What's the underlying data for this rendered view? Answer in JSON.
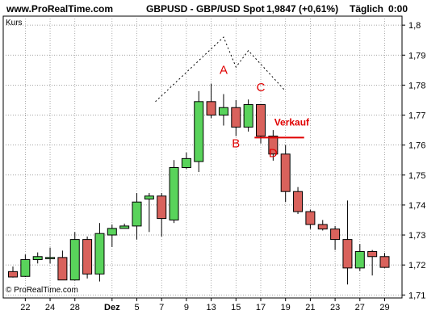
{
  "header": {
    "site": "www.ProRealTime.com",
    "instrument": "GBPUSD - GBP/USD Spot",
    "price": "1,9847 (+0,61%)",
    "timeframe": "Täglich",
    "time": "0:00"
  },
  "panel_label": "Kurs",
  "copyright": "© ProRealTime.com",
  "colors": {
    "up": "#59d35b",
    "down": "#d9625c",
    "annotation": "#e00000",
    "grid": "#888888"
  },
  "chart_data": {
    "type": "candlestick",
    "ylim": [
      1.709,
      1.803
    ],
    "y_ticks": [
      "1,71",
      "1,72",
      "1,73",
      "1,74",
      "1,75",
      "1,76",
      "1,77",
      "1,78",
      "1,79",
      "1,8"
    ],
    "y_tick_values": [
      1.71,
      1.72,
      1.73,
      1.74,
      1.75,
      1.76,
      1.77,
      1.78,
      1.79,
      1.8
    ],
    "x_ticks": [
      "22",
      "24",
      "28",
      "Dez",
      "5",
      "7",
      "9",
      "13",
      "15",
      "17",
      "19",
      "21",
      "23",
      "27",
      "29"
    ],
    "x_tick_index": [
      1,
      3,
      5,
      8,
      10,
      12,
      14,
      16,
      18,
      20,
      22,
      24,
      26,
      28,
      30
    ],
    "candles": [
      {
        "o": 1.7178,
        "h": 1.7195,
        "l": 1.7158,
        "c": 1.716
      },
      {
        "o": 1.7162,
        "h": 1.7235,
        "l": 1.716,
        "c": 1.7218
      },
      {
        "o": 1.7218,
        "h": 1.7242,
        "l": 1.7205,
        "c": 1.7228
      },
      {
        "o": 1.7222,
        "h": 1.7258,
        "l": 1.7205,
        "c": 1.7225
      },
      {
        "o": 1.7225,
        "h": 1.7248,
        "l": 1.715,
        "c": 1.715
      },
      {
        "o": 1.715,
        "h": 1.731,
        "l": 1.7148,
        "c": 1.7285
      },
      {
        "o": 1.7285,
        "h": 1.7295,
        "l": 1.7155,
        "c": 1.717
      },
      {
        "o": 1.717,
        "h": 1.734,
        "l": 1.7145,
        "c": 1.7305
      },
      {
        "o": 1.73,
        "h": 1.7335,
        "l": 1.726,
        "c": 1.7322
      },
      {
        "o": 1.7322,
        "h": 1.7338,
        "l": 1.7322,
        "c": 1.733
      },
      {
        "o": 1.733,
        "h": 1.744,
        "l": 1.7285,
        "c": 1.741
      },
      {
        "o": 1.742,
        "h": 1.744,
        "l": 1.731,
        "c": 1.743
      },
      {
        "o": 1.743,
        "h": 1.744,
        "l": 1.7295,
        "c": 1.7355
      },
      {
        "o": 1.735,
        "h": 1.755,
        "l": 1.734,
        "c": 1.7525
      },
      {
        "o": 1.7525,
        "h": 1.7575,
        "l": 1.752,
        "c": 1.7555
      },
      {
        "o": 1.7545,
        "h": 1.778,
        "l": 1.751,
        "c": 1.7745
      },
      {
        "o": 1.7745,
        "h": 1.7805,
        "l": 1.769,
        "c": 1.77
      },
      {
        "o": 1.77,
        "h": 1.777,
        "l": 1.7665,
        "c": 1.7725
      },
      {
        "o": 1.7725,
        "h": 1.775,
        "l": 1.763,
        "c": 1.766
      },
      {
        "o": 1.766,
        "h": 1.7752,
        "l": 1.7645,
        "c": 1.7735
      },
      {
        "o": 1.7735,
        "h": 1.7735,
        "l": 1.7605,
        "c": 1.763
      },
      {
        "o": 1.763,
        "h": 1.765,
        "l": 1.7548,
        "c": 1.757
      },
      {
        "o": 1.757,
        "h": 1.76,
        "l": 1.741,
        "c": 1.7445
      },
      {
        "o": 1.7445,
        "h": 1.746,
        "l": 1.737,
        "c": 1.7378
      },
      {
        "o": 1.7378,
        "h": 1.7385,
        "l": 1.732,
        "c": 1.7335
      },
      {
        "o": 1.7335,
        "h": 1.735,
        "l": 1.7315,
        "c": 1.732
      },
      {
        "o": 1.732,
        "h": 1.733,
        "l": 1.725,
        "c": 1.7285
      },
      {
        "o": 1.7285,
        "h": 1.7415,
        "l": 1.7135,
        "c": 1.719
      },
      {
        "o": 1.719,
        "h": 1.727,
        "l": 1.718,
        "c": 1.7245
      },
      {
        "o": 1.7245,
        "h": 1.725,
        "l": 1.7165,
        "c": 1.7228
      },
      {
        "o": 1.7228,
        "h": 1.724,
        "l": 1.719,
        "c": 1.7192
      }
    ],
    "annotations": {
      "labels": [
        {
          "text": "A",
          "i": 17,
          "y": 1.7838
        },
        {
          "text": "B",
          "i": 18,
          "y": 1.7592
        },
        {
          "text": "C",
          "i": 20,
          "y": 1.778
        },
        {
          "text": "D",
          "i": 21,
          "y": 1.756
        },
        {
          "text": "Verkauf",
          "i": 22.5,
          "y": 1.7665
        }
      ],
      "sell_line": {
        "i0": 19.5,
        "i1": 23.5,
        "y": 1.7625
      },
      "dotted_pattern": [
        {
          "i": 11.5,
          "y": 1.7745
        },
        {
          "i": 17,
          "y": 1.796
        },
        {
          "i": 18,
          "y": 1.786
        },
        {
          "i": 19,
          "y": 1.7915
        },
        {
          "i": 22,
          "y": 1.778
        }
      ]
    }
  }
}
